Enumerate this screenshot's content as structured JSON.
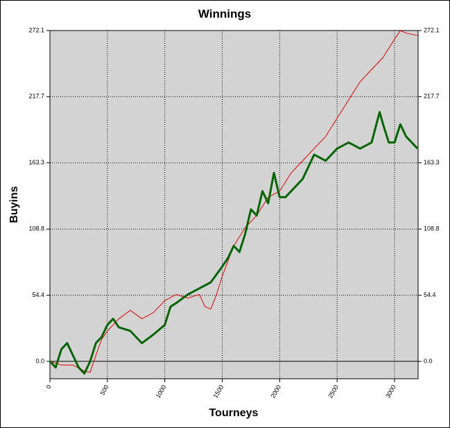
{
  "chart_data": {
    "type": "line",
    "title": "Winnings",
    "x_label": "Tourneys",
    "y_label": "Buyins",
    "xlim": [
      0,
      3205
    ],
    "ylim": [
      -14.3,
      272.1
    ],
    "xticks": [
      0,
      500,
      1000,
      1500,
      2000,
      2500,
      3000
    ],
    "yticks": [
      {
        "value": 0,
        "label": "0.0"
      },
      54.4,
      108.8,
      163.3,
      217.7,
      272.1
    ],
    "grid": true,
    "series": [
      {
        "color": "#e00000",
        "x": [
          0,
          100,
          200,
          300,
          350,
          400,
          450,
          500,
          600,
          700,
          800,
          900,
          1000,
          1100,
          1200,
          1300,
          1350,
          1400,
          1450,
          1500,
          1600,
          1700,
          1800,
          1900,
          2000,
          2100,
          2200,
          2300,
          2400,
          2500,
          2600,
          2700,
          2800,
          2900,
          3000,
          3050,
          3100,
          3200
        ],
        "values": [
          0,
          -3,
          -3,
          -8,
          -9,
          5,
          18,
          25,
          35,
          42,
          35,
          40,
          50,
          55,
          52,
          55,
          45,
          43,
          55,
          70,
          95,
          110,
          120,
          135,
          140,
          155,
          165,
          175,
          185,
          200,
          215,
          230,
          240,
          250,
          265,
          272,
          270,
          268
        ]
      },
      {
        "color": "#006400",
        "x": [
          0,
          50,
          100,
          150,
          200,
          250,
          300,
          350,
          400,
          450,
          500,
          550,
          600,
          700,
          800,
          900,
          1000,
          1050,
          1100,
          1200,
          1300,
          1400,
          1500,
          1550,
          1600,
          1650,
          1700,
          1750,
          1800,
          1850,
          1900,
          1950,
          2000,
          2050,
          2100,
          2200,
          2300,
          2400,
          2500,
          2600,
          2700,
          2800,
          2870,
          2900,
          2950,
          3000,
          3050,
          3100,
          3200
        ],
        "values": [
          0,
          -5,
          10,
          15,
          5,
          -5,
          -10,
          0,
          15,
          20,
          30,
          35,
          28,
          25,
          15,
          22,
          30,
          45,
          48,
          55,
          60,
          65,
          78,
          85,
          95,
          90,
          105,
          125,
          120,
          140,
          130,
          155,
          135,
          135,
          140,
          150,
          170,
          165,
          175,
          180,
          175,
          180,
          205,
          195,
          180,
          180,
          195,
          185,
          175
        ]
      }
    ]
  }
}
